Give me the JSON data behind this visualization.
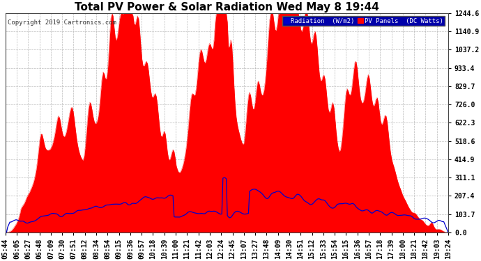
{
  "title": "Total PV Power & Solar Radiation Wed May 8 19:44",
  "copyright": "Copyright 2019 Cartronics.com",
  "legend_radiation": "Radiation  (W/m2)",
  "legend_pv": "PV Panels  (DC Watts)",
  "yticks": [
    0.0,
    103.7,
    207.4,
    311.1,
    414.9,
    518.6,
    622.3,
    726.0,
    829.7,
    933.4,
    1037.2,
    1140.9,
    1244.6
  ],
  "ymax": 1244.6,
  "ymin": 0.0,
  "background_color": "#ffffff",
  "plot_bg_color": "#ffffff",
  "grid_color": "#aaaaaa",
  "pv_color": "#ff0000",
  "radiation_color": "#0000cc",
  "title_fontsize": 11,
  "tick_fontsize": 7.0,
  "xtick_labels": [
    "05:44",
    "06:05",
    "06:27",
    "06:48",
    "07:09",
    "07:30",
    "07:51",
    "08:12",
    "08:34",
    "08:54",
    "09:15",
    "09:36",
    "09:57",
    "10:18",
    "10:39",
    "11:00",
    "11:21",
    "11:42",
    "12:03",
    "12:24",
    "12:45",
    "13:07",
    "13:27",
    "13:48",
    "14:09",
    "14:30",
    "14:51",
    "15:12",
    "15:33",
    "15:54",
    "16:15",
    "16:36",
    "16:57",
    "17:18",
    "17:39",
    "18:00",
    "18:21",
    "18:42",
    "19:03",
    "19:24"
  ]
}
